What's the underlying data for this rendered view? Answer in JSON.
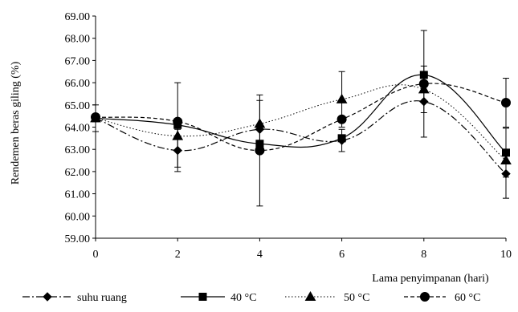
{
  "chart_data": {
    "type": "line",
    "xlabel": "Lama  penyimpanan (hari)",
    "ylabel": "Rendemen beras giling (%)",
    "x": [
      0,
      2,
      4,
      6,
      8,
      10
    ],
    "xlim": [
      0,
      10
    ],
    "ylim": [
      59,
      69
    ],
    "x_ticks": [
      "0",
      "2",
      "4",
      "6",
      "8",
      "10"
    ],
    "y_ticks": [
      "59.00",
      "60.00",
      "61.00",
      "62.00",
      "63.00",
      "64.00",
      "65.00",
      "66.00",
      "67.00",
      "68.00",
      "69.00"
    ],
    "grid": false,
    "legend_position": "bottom",
    "smooth": true,
    "series": [
      {
        "name": "suhu ruang",
        "marker": "diamond",
        "line_style": "dash-dot",
        "color": "#000000",
        "values": [
          64.4,
          62.95,
          63.9,
          63.4,
          65.15,
          61.9
        ],
        "error": [
          0.6,
          0.95,
          0.0,
          0.5,
          0.0,
          1.1
        ]
      },
      {
        "name": "40 °C",
        "marker": "square",
        "line_style": "solid",
        "color": "#000000",
        "values": [
          64.4,
          64.1,
          63.25,
          63.5,
          66.35,
          62.85
        ],
        "error": [
          0.0,
          1.9,
          0.0,
          0.0,
          0.0,
          1.1
        ]
      },
      {
        "name": "50 °C",
        "marker": "triangle",
        "line_style": "dotted",
        "color": "#000000",
        "values": [
          64.4,
          63.6,
          64.15,
          65.25,
          65.7,
          62.5
        ],
        "error": [
          0.0,
          0.0,
          1.05,
          1.25,
          1.05,
          0.0
        ]
      },
      {
        "name": "60 °C",
        "marker": "circle",
        "line_style": "dashed",
        "color": "#000000",
        "values": [
          64.45,
          64.25,
          62.95,
          64.35,
          65.95,
          65.1
        ],
        "error": [
          0.0,
          0.0,
          2.5,
          0.0,
          2.4,
          1.1
        ]
      }
    ]
  }
}
